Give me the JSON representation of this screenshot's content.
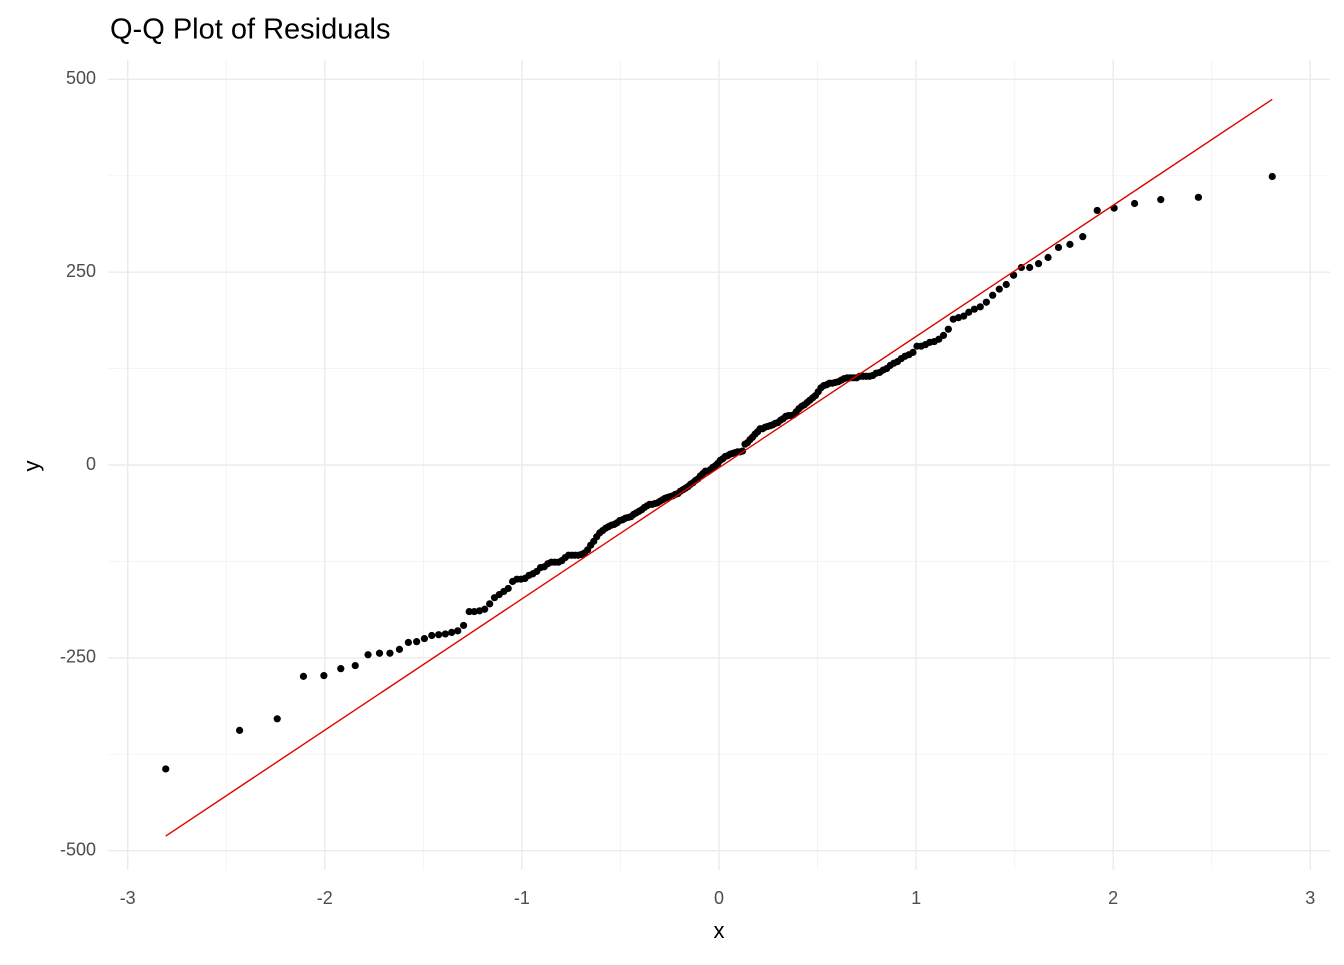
{
  "chart_data": {
    "type": "scatter",
    "title": "Q-Q Plot of Residuals",
    "x_label": "x",
    "y_label": "y",
    "xlim": [
      -3.1,
      3.1
    ],
    "ylim": [
      -525,
      525
    ],
    "xticks": [
      -3,
      -2,
      -1,
      0,
      1,
      2,
      3
    ],
    "yticks": [
      -500,
      -250,
      0,
      250,
      500
    ],
    "xminor": [
      -2.5,
      -1.5,
      -0.5,
      0.5,
      1.5,
      2.5
    ],
    "yminor": [
      -375,
      -125,
      125,
      375
    ],
    "grid": true,
    "color": "#000000",
    "x": [
      -2.807,
      -2.4324,
      -2.2414,
      -2.1084,
      -2.0047,
      -1.9189,
      -1.8455,
      -1.7805,
      -1.7225,
      -1.6696,
      -1.6213,
      -1.5761,
      -1.5341,
      -1.4946,
      -1.4574,
      -1.4222,
      -1.3885,
      -1.3563,
      -1.3255,
      -1.2959,
      -1.2673,
      -1.2417,
      -1.2148,
      -1.1887,
      -1.1635,
      -1.139,
      -1.1152,
      -1.092,
      -1.0694,
      -1.0473,
      -1.0257,
      -1.0047,
      -0.9842,
      -0.9639,
      -0.9442,
      -0.9248,
      -0.9058,
      -0.8871,
      -0.8685,
      -0.8505,
      -0.8327,
      -0.8147,
      -0.7975,
      -0.7805,
      -0.7637,
      -0.7471,
      -0.7307,
      -0.7144,
      -0.6983,
      -0.6824,
      -0.6666,
      -0.651,
      -0.6356,
      -0.6203,
      -0.6052,
      -0.5903,
      -0.5754,
      -0.5607,
      -0.5461,
      -0.5316,
      -0.5172,
      -0.5035,
      -0.4892,
      -0.475,
      -0.461,
      -0.447,
      -0.4331,
      -0.4193,
      -0.4056,
      -0.3921,
      -0.3786,
      -0.3652,
      -0.3518,
      -0.3385,
      -0.3253,
      -0.3121,
      -0.2989,
      -0.2858,
      -0.2728,
      -0.2598,
      -0.2469,
      -0.2342,
      -0.2213,
      -0.2085,
      -0.1956,
      -0.1828,
      -0.1701,
      -0.1573,
      -0.1447,
      -0.132,
      -0.1193,
      -0.1067,
      -0.0941,
      -0.0815,
      -0.069,
      -0.0564,
      -0.0439,
      -0.0313,
      -0.0188,
      -0.0063,
      0.0063,
      0.0188,
      0.0313,
      0.0439,
      0.0564,
      0.069,
      0.0815,
      0.0941,
      0.1067,
      0.1193,
      0.132,
      0.1447,
      0.1573,
      0.1701,
      0.1828,
      0.1956,
      0.2085,
      0.2213,
      0.2342,
      0.2469,
      0.2598,
      0.2728,
      0.2858,
      0.2989,
      0.3121,
      0.3253,
      0.3385,
      0.3518,
      0.3652,
      0.3786,
      0.3921,
      0.4056,
      0.4193,
      0.4331,
      0.447,
      0.461,
      0.475,
      0.4892,
      0.5035,
      0.5172,
      0.5316,
      0.5461,
      0.5607,
      0.5754,
      0.5903,
      0.6052,
      0.6203,
      0.6356,
      0.651,
      0.6666,
      0.6824,
      0.6983,
      0.7144,
      0.7307,
      0.7471,
      0.7637,
      0.7805,
      0.7975,
      0.8147,
      0.8327,
      0.8505,
      0.8685,
      0.8871,
      0.9058,
      0.9248,
      0.9442,
      0.9639,
      0.9842,
      1.0047,
      1.0257,
      1.0473,
      1.0694,
      1.092,
      1.1152,
      1.139,
      1.1635,
      1.1887,
      1.2148,
      1.2417,
      1.2673,
      1.2959,
      1.3255,
      1.3563,
      1.3885,
      1.4222,
      1.4574,
      1.4946,
      1.5341,
      1.5761,
      1.6213,
      1.6696,
      1.7225,
      1.7805,
      1.8455,
      1.9189,
      2.0047,
      2.1084,
      2.2414,
      2.4324,
      2.807
    ],
    "values": [
      -394,
      -344,
      -329,
      -274,
      -273,
      -264,
      -260,
      -246,
      -244,
      -244,
      -239,
      -230,
      -229,
      -225,
      -221,
      -220,
      -219,
      -217,
      -215,
      -208,
      -190,
      -190,
      -189,
      -187,
      -180,
      -172,
      -168,
      -164,
      -160,
      -151,
      -148,
      -148,
      -147,
      -143,
      -141,
      -138,
      -133,
      -132,
      -128,
      -126,
      -126,
      -126,
      -124,
      -120,
      -117,
      -117,
      -117,
      -117,
      -116,
      -114,
      -110,
      -104,
      -99,
      -93,
      -88,
      -85,
      -82,
      -80,
      -78,
      -77,
      -75,
      -72,
      -71,
      -69,
      -68,
      -67,
      -64,
      -62,
      -60,
      -58,
      -55,
      -53,
      -51,
      -51,
      -50,
      -49,
      -47,
      -45,
      -43,
      -42,
      -41,
      -40,
      -38,
      -37,
      -34,
      -32,
      -30,
      -28,
      -25,
      -23,
      -20,
      -18,
      -14,
      -11,
      -8,
      -8,
      -6,
      -3,
      -1,
      2,
      6,
      8,
      11,
      12,
      14,
      15,
      16,
      17,
      17,
      18,
      27,
      29,
      33,
      36,
      40,
      43,
      47,
      47,
      49,
      50,
      51,
      52,
      54,
      55,
      58,
      60,
      63,
      64,
      64,
      65,
      69,
      73,
      76,
      78,
      81,
      84,
      87,
      90,
      95,
      100,
      103,
      104,
      106,
      106,
      107,
      108,
      110,
      112,
      113,
      113,
      113,
      113,
      115,
      115,
      115,
      115,
      116,
      119,
      120,
      123,
      125,
      129,
      132,
      134,
      138,
      141,
      143,
      146,
      154,
      154,
      156,
      159,
      160,
      163,
      168,
      176,
      189,
      191,
      193,
      198,
      202,
      205,
      211,
      220,
      228,
      234,
      246,
      256,
      256,
      261,
      269,
      282,
      286,
      296,
      330,
      333,
      339,
      344,
      347,
      374
    ],
    "ref_line": {
      "color": "#e00000",
      "x": [
        -2.807,
        2.807
      ],
      "values": [
        -481,
        474
      ]
    }
  }
}
